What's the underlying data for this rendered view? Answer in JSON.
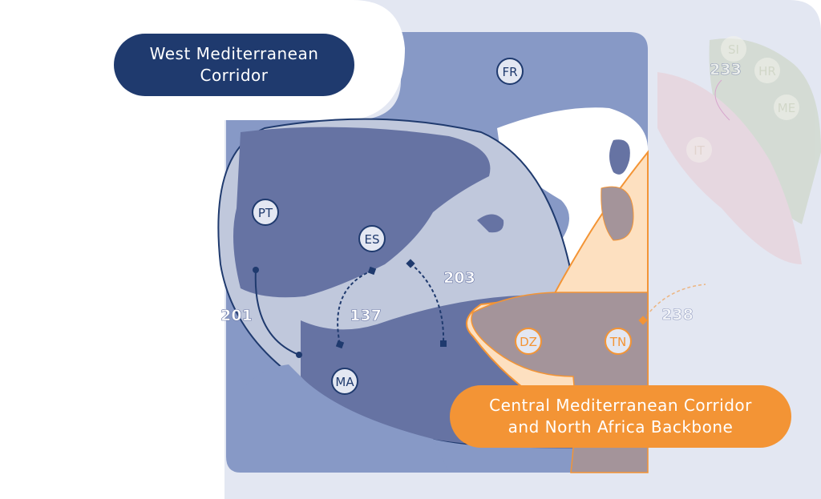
{
  "title_west": "West Mediterranean Corridor",
  "title_central": "Central Mediterranean Corridor and North Africa Backbone",
  "countries": {
    "fr": "FR",
    "pt": "PT",
    "es": "ES",
    "ma": "MA",
    "dz": "DZ",
    "tn": "TN",
    "it": "IT",
    "si": "SI",
    "hr": "HR",
    "me": "ME"
  },
  "links": {
    "l201": "201",
    "l137": "137",
    "l203": "203",
    "l238": "238",
    "l233": "233"
  },
  "colors": {
    "west": "#1f3a6e",
    "central": "#f39435",
    "land": "#8799c6",
    "sea": "#c0c8dc",
    "zone": "#6673a3",
    "overlap": "#a4949a",
    "faded": "#e3e7f2"
  }
}
